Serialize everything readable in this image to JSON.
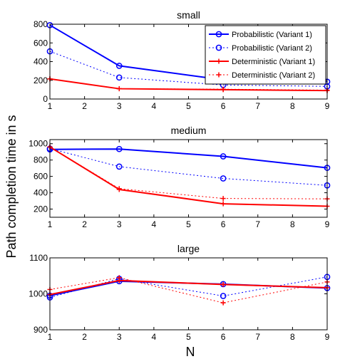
{
  "figure": {
    "ylabel": "Path completion time in s",
    "xlabel": "N"
  },
  "legend_entries": [
    {
      "name": "Probabilistic (Variant 1)",
      "style": "p1"
    },
    {
      "name": "Probabilistic (Variant 2)",
      "style": "p2"
    },
    {
      "name": "Deterministic (Variant 1)",
      "style": "d1"
    },
    {
      "name": "Deterministic (Variant 2)",
      "style": "d2"
    }
  ],
  "styles": {
    "p1": {
      "color": "#0000ff",
      "dash": "",
      "marker": "circle"
    },
    "p2": {
      "color": "#0000ff",
      "dash": "2,3",
      "marker": "circle"
    },
    "d1": {
      "color": "#ff0000",
      "dash": "",
      "marker": "plus"
    },
    "d2": {
      "color": "#ff0000",
      "dash": "2,3",
      "marker": "plus"
    }
  },
  "chart_data": [
    {
      "type": "line",
      "title": "small",
      "x": [
        1,
        3,
        6,
        9
      ],
      "xlim": [
        1,
        9
      ],
      "xticks": [
        1,
        2,
        3,
        4,
        5,
        6,
        7,
        8,
        9
      ],
      "ylim": [
        0,
        800
      ],
      "yticks": [
        0,
        200,
        400,
        600,
        800
      ],
      "legend": "top-right",
      "series": [
        {
          "name": "Probabilistic (Variant 1)",
          "style": "p1",
          "values": [
            790,
            355,
            205,
            185
          ]
        },
        {
          "name": "Probabilistic (Variant 2)",
          "style": "p2",
          "values": [
            510,
            230,
            150,
            135
          ]
        },
        {
          "name": "Deterministic (Variant 1)",
          "style": "d1",
          "values": [
            215,
            110,
            100,
            90
          ]
        },
        {
          "name": "Deterministic (Variant 2)",
          "style": "d2",
          "values": [
            215,
            110,
            105,
            95
          ]
        }
      ]
    },
    {
      "type": "line",
      "title": "medium",
      "x": [
        1,
        3,
        6,
        9
      ],
      "xlim": [
        1,
        9
      ],
      "xticks": [
        1,
        2,
        3,
        4,
        5,
        6,
        7,
        8,
        9
      ],
      "ylim": [
        100,
        1050
      ],
      "yticks": [
        200,
        400,
        600,
        800,
        1000
      ],
      "series": [
        {
          "name": "Probabilistic (Variant 1)",
          "style": "p1",
          "values": [
            930,
            935,
            845,
            705
          ]
        },
        {
          "name": "Probabilistic (Variant 2)",
          "style": "p2",
          "values": [
            940,
            720,
            575,
            490
          ]
        },
        {
          "name": "Deterministic (Variant 1)",
          "style": "d1",
          "values": [
            960,
            440,
            265,
            235
          ]
        },
        {
          "name": "Deterministic (Variant 2)",
          "style": "d2",
          "values": [
            960,
            450,
            330,
            325
          ]
        }
      ]
    },
    {
      "type": "line",
      "title": "large",
      "x": [
        1,
        3,
        6,
        9
      ],
      "xlim": [
        1,
        9
      ],
      "xticks": [
        1,
        2,
        3,
        4,
        5,
        6,
        7,
        8,
        9
      ],
      "ylim": [
        900,
        1100
      ],
      "yticks": [
        900,
        1000,
        1100
      ],
      "series": [
        {
          "name": "Probabilistic (Variant 1)",
          "style": "p1",
          "values": [
            995,
            1035,
            1027,
            1016
          ]
        },
        {
          "name": "Probabilistic (Variant 2)",
          "style": "p2",
          "values": [
            990,
            1042,
            994,
            1047
          ]
        },
        {
          "name": "Deterministic (Variant 1)",
          "style": "d1",
          "values": [
            998,
            1037,
            1026,
            1017
          ]
        },
        {
          "name": "Deterministic (Variant 2)",
          "style": "d2",
          "values": [
            1012,
            1045,
            975,
            1033
          ]
        }
      ]
    }
  ]
}
